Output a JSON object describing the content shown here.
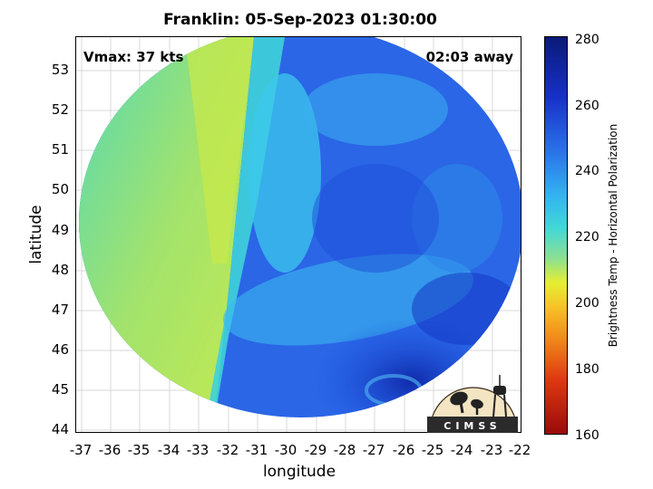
{
  "title": "Franklin: 05-Sep-2023 01:30:00",
  "vmax_label": "Vmax: 37 kts",
  "away_label": "02:03 away",
  "xlabel": "longitude",
  "ylabel": "latitude",
  "colorbar_label": "Brightness Temp - Horizontal Polarization",
  "logo_text": "CIMSS",
  "map_data": {
    "lon_range": [
      -37.2,
      -21.9
    ],
    "lat_range": [
      43.9,
      53.8
    ],
    "swath_center": [
      -29.5,
      48.9
    ],
    "swath_radius_lon": 7.6,
    "swath_radius_lat": 4.85,
    "x_ticks": [
      "-37",
      "-36",
      "-35",
      "-34",
      "-33",
      "-32",
      "-31",
      "-30",
      "-29",
      "-28",
      "-27",
      "-26",
      "-25",
      "-24",
      "-23",
      "-22"
    ],
    "y_ticks": [
      "44",
      "45",
      "46",
      "47",
      "48",
      "49",
      "50",
      "51",
      "52",
      "53"
    ],
    "colorbar_ticks": [
      "280",
      "260",
      "240",
      "220",
      "200",
      "180",
      "160"
    ],
    "colorbar_range": [
      160,
      280
    ],
    "colors": {
      "warm_region": "#a8e668",
      "cold_region": "#1f55e6",
      "storm_core": "#1436c4",
      "outer_band": "#3cc8ec"
    }
  }
}
